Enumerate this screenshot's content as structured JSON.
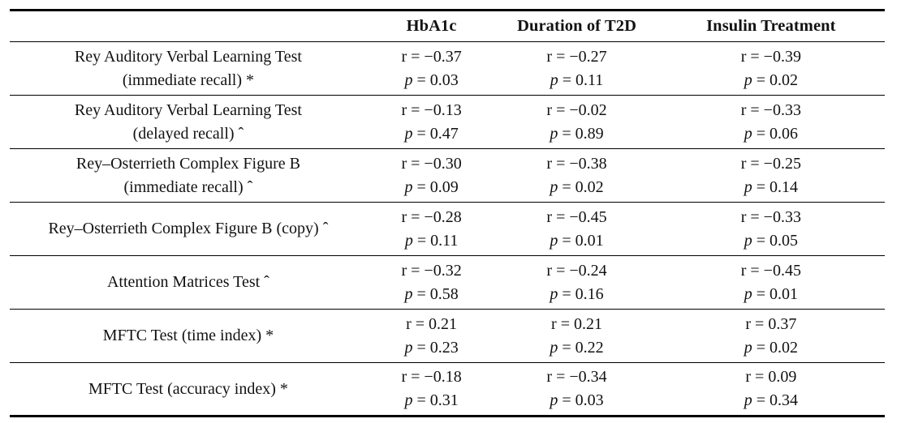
{
  "table": {
    "p_label": "p",
    "headers": [
      "",
      "HbA1c",
      "Duration of T2D",
      "Insulin Treatment"
    ],
    "rows": [
      {
        "label_line1": "Rey Auditory Verbal Learning Test",
        "label_line2": "(immediate recall) *",
        "cells": [
          {
            "r": "r = −0.37",
            "p": " = 0.03"
          },
          {
            "r": "r = −0.27",
            "p": " = 0.11"
          },
          {
            "r": "r = −0.39",
            "p": " = 0.02"
          }
        ]
      },
      {
        "label_line1": "Rey Auditory Verbal Learning Test",
        "label_line2": "(delayed recall) ˆ",
        "cells": [
          {
            "r": "r = −0.13",
            "p": " = 0.47"
          },
          {
            "r": "r = −0.02",
            "p": " = 0.89"
          },
          {
            "r": "r = −0.33",
            "p": " = 0.06"
          }
        ]
      },
      {
        "label_line1": "Rey–Osterrieth Complex Figure B",
        "label_line2": "(immediate recall) ˆ",
        "cells": [
          {
            "r": "r = −0.30",
            "p": " = 0.09"
          },
          {
            "r": "r = −0.38",
            "p": " = 0.02"
          },
          {
            "r": "r = −0.25",
            "p": " = 0.14"
          }
        ]
      },
      {
        "label_line1": "Rey–Osterrieth Complex Figure B (copy) ˆ",
        "label_line2": "",
        "cells": [
          {
            "r": "r = −0.28",
            "p": " = 0.11"
          },
          {
            "r": "r = −0.45",
            "p": " = 0.01"
          },
          {
            "r": "r = −0.33",
            "p": " = 0.05"
          }
        ]
      },
      {
        "label_line1": "Attention Matrices Test ˆ",
        "label_line2": "",
        "cells": [
          {
            "r": "r = −0.32",
            "p": " = 0.58"
          },
          {
            "r": "r = −0.24",
            "p": " = 0.16"
          },
          {
            "r": "r = −0.45",
            "p": " = 0.01"
          }
        ]
      },
      {
        "label_line1": "MFTC Test (time index) *",
        "label_line2": "",
        "cells": [
          {
            "r": "r = 0.21",
            "p": " = 0.23"
          },
          {
            "r": "r = 0.21",
            "p": " = 0.22"
          },
          {
            "r": "r = 0.37",
            "p": " = 0.02"
          }
        ]
      },
      {
        "label_line1": "MFTC Test (accuracy index) *",
        "label_line2": "",
        "cells": [
          {
            "r": "r = −0.18",
            "p": " = 0.31"
          },
          {
            "r": "r = −0.34",
            "p": " = 0.03"
          },
          {
            "r": "r = 0.09",
            "p": " = 0.34"
          }
        ]
      }
    ]
  }
}
